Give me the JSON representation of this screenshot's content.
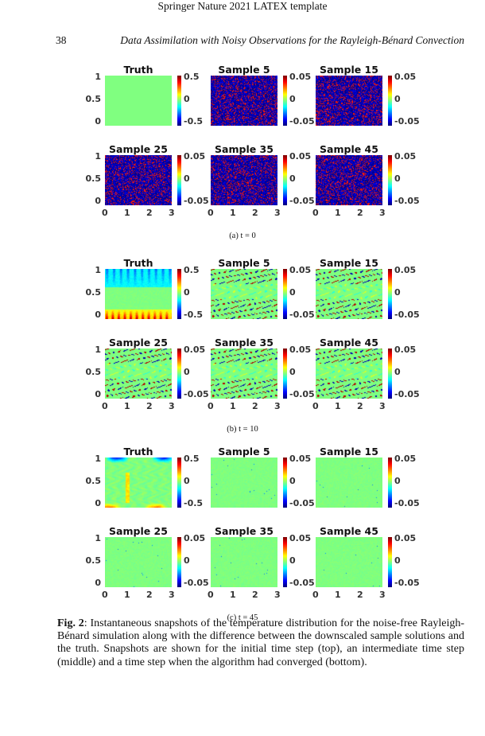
{
  "header": {
    "running_head": "Springer Nature 2021 LATEX template",
    "page_number": "38",
    "article_title": "Data Assimilation with Noisy Observations for the Rayleigh-Bénard Convection"
  },
  "figures": [
    {
      "label": "(a) t = 0",
      "panels": [
        {
          "title": "Truth",
          "pattern": "uniform",
          "cbar": [
            "0.5",
            "0",
            "-0.5"
          ]
        },
        {
          "title": "Sample 5",
          "pattern": "noise",
          "cbar": [
            "0.05",
            "0",
            "-0.05"
          ]
        },
        {
          "title": "Sample 15",
          "pattern": "noise",
          "cbar": [
            "0.05",
            "0",
            "-0.05"
          ]
        },
        {
          "title": "Sample 25",
          "pattern": "noise",
          "cbar": [
            "0.05",
            "0",
            "-0.05"
          ]
        },
        {
          "title": "Sample 35",
          "pattern": "noise",
          "cbar": [
            "0.05",
            "0",
            "-0.05"
          ]
        },
        {
          "title": "Sample 45",
          "pattern": "noise",
          "cbar": [
            "0.05",
            "0",
            "-0.05"
          ]
        }
      ]
    },
    {
      "label": "(b) t = 10",
      "panels": [
        {
          "title": "Truth",
          "pattern": "truth-plumes-early",
          "cbar": [
            "0.5",
            "0",
            "-0.5"
          ]
        },
        {
          "title": "Sample 5",
          "pattern": "error-plumes",
          "cbar": [
            "0.05",
            "0",
            "-0.05"
          ]
        },
        {
          "title": "Sample 15",
          "pattern": "error-plumes",
          "cbar": [
            "0.05",
            "0",
            "-0.05"
          ]
        },
        {
          "title": "Sample 25",
          "pattern": "error-plumes",
          "cbar": [
            "0.05",
            "0",
            "-0.05"
          ]
        },
        {
          "title": "Sample 35",
          "pattern": "error-plumes",
          "cbar": [
            "0.05",
            "0",
            "-0.05"
          ]
        },
        {
          "title": "Sample 45",
          "pattern": "error-plumes",
          "cbar": [
            "0.05",
            "0",
            "-0.05"
          ]
        }
      ]
    },
    {
      "label": "(c) t = 45",
      "panels": [
        {
          "title": "Truth",
          "pattern": "truth-convection",
          "cbar": [
            "0.5",
            "0",
            "-0.5"
          ]
        },
        {
          "title": "Sample 5",
          "pattern": "near-zero",
          "cbar": [
            "0.05",
            "0",
            "-0.05"
          ]
        },
        {
          "title": "Sample 15",
          "pattern": "near-zero",
          "cbar": [
            "0.05",
            "0",
            "-0.05"
          ]
        },
        {
          "title": "Sample 25",
          "pattern": "near-zero",
          "cbar": [
            "0.05",
            "0",
            "-0.05"
          ]
        },
        {
          "title": "Sample 35",
          "pattern": "near-zero",
          "cbar": [
            "0.05",
            "0",
            "-0.05"
          ]
        },
        {
          "title": "Sample 45",
          "pattern": "near-zero",
          "cbar": [
            "0.05",
            "0",
            "-0.05"
          ]
        }
      ]
    }
  ],
  "y_ticks": [
    "1",
    "0.5",
    "0"
  ],
  "x_ticks": [
    "0",
    "1",
    "2",
    "3"
  ],
  "caption": {
    "label": "Fig. 2",
    "text": ": Instantaneous snapshots of the temperature distribution for the noise-free Rayleigh-Bénard simulation along with the difference between the downscaled sample solutions and the truth. Snapshots are shown for the initial time step (top), an intermediate time step (middle) and a time step when the algorithm had converged (bottom)."
  }
}
